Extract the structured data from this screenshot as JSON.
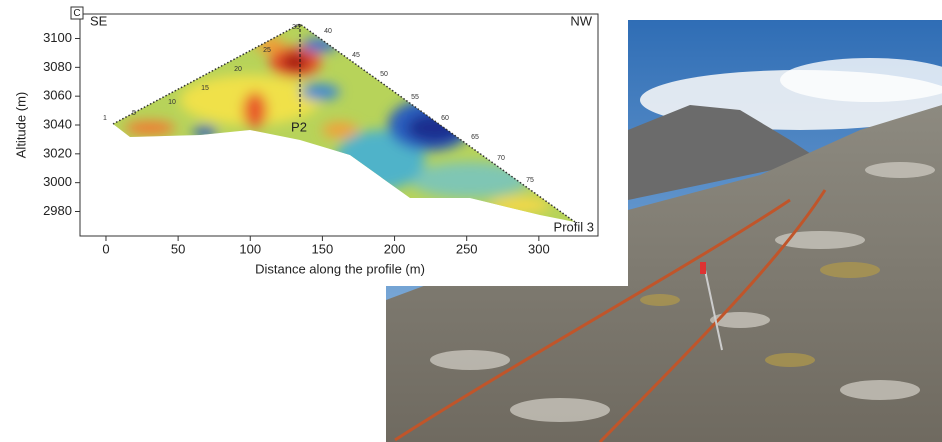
{
  "chart_data": {
    "type": "section",
    "panel_label": "C",
    "left_label": "SE",
    "right_label": "NW",
    "profile_label": "Profil 3",
    "marker_label": "P2",
    "xlabel": "Distance along the profile (m)",
    "ylabel": "Altitude (m)",
    "xlim": [
      -18,
      341
    ],
    "ylim": [
      2963,
      3117
    ],
    "xticks": [
      0,
      50,
      100,
      150,
      200,
      250,
      300
    ],
    "yticks": [
      2980,
      3000,
      3020,
      3040,
      3060,
      3080,
      3100
    ],
    "electrodes": [
      "1",
      "5",
      "10",
      "15",
      "20",
      "25",
      "35",
      "40",
      "45",
      "50",
      "55",
      "60",
      "65",
      "70",
      "75"
    ]
  }
}
